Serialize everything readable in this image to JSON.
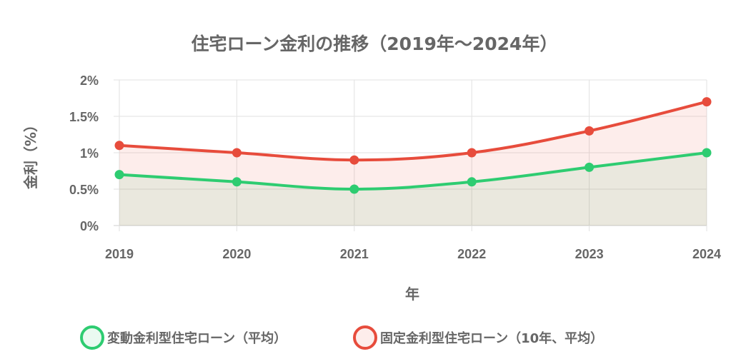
{
  "chart_data": {
    "type": "line",
    "title": "住宅ローン金利の推移（2019年～2024年）",
    "xlabel": "年",
    "ylabel": "金利（%）",
    "categories": [
      "2019",
      "2020",
      "2021",
      "2022",
      "2023",
      "2024"
    ],
    "ylim": [
      0,
      2
    ],
    "yticks": [
      "0%",
      "0.5%",
      "1%",
      "1.5%",
      "2%"
    ],
    "grid": true,
    "legend_position": "bottom",
    "series": [
      {
        "name": "変動金利型住宅ローン（平均）",
        "values": [
          0.7,
          0.6,
          0.5,
          0.6,
          0.8,
          1.0
        ],
        "color": "#2ecc71",
        "fill": "rgba(46,204,113,0.1)"
      },
      {
        "name": "固定金利型住宅ローン（10年、平均）",
        "values": [
          1.1,
          1.0,
          0.9,
          1.0,
          1.3,
          1.7
        ],
        "color": "#e74c3c",
        "fill": "rgba(231,76,60,0.1)"
      }
    ]
  }
}
